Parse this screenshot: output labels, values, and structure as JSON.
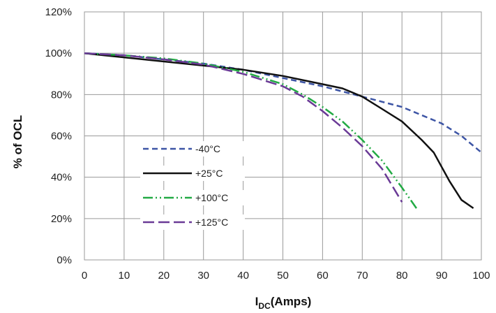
{
  "chart_data": {
    "type": "line",
    "xlabel_main": "I",
    "xlabel_sub": "DC",
    "xlabel_rest": "(Amps)",
    "ylabel": "% of OCL",
    "xlim": [
      0,
      100
    ],
    "ylim": [
      0,
      120
    ],
    "x_ticks": [
      "0",
      "10",
      "20",
      "30",
      "40",
      "50",
      "60",
      "70",
      "80",
      "90",
      "100"
    ],
    "y_ticks": [
      "0%",
      "20%",
      "40%",
      "60%",
      "80%",
      "100%",
      "120%"
    ],
    "grid": true,
    "legend_position": "center-left",
    "series": [
      {
        "name": "-40°C",
        "color": "#3d55a5",
        "style": "dashed",
        "points": [
          [
            0,
            100
          ],
          [
            10,
            99
          ],
          [
            20,
            97
          ],
          [
            30,
            95
          ],
          [
            40,
            92
          ],
          [
            50,
            88
          ],
          [
            60,
            84
          ],
          [
            70,
            79
          ],
          [
            80,
            74
          ],
          [
            90,
            66
          ],
          [
            95,
            60
          ],
          [
            100,
            52
          ]
        ]
      },
      {
        "name": "+25°C",
        "color": "#111111",
        "style": "solid",
        "points": [
          [
            0,
            100
          ],
          [
            10,
            98
          ],
          [
            20,
            96
          ],
          [
            30,
            94
          ],
          [
            40,
            92
          ],
          [
            50,
            89
          ],
          [
            60,
            85
          ],
          [
            65,
            83
          ],
          [
            70,
            79
          ],
          [
            75,
            73
          ],
          [
            80,
            67
          ],
          [
            85,
            58
          ],
          [
            88,
            52
          ],
          [
            92,
            38
          ],
          [
            95,
            29
          ],
          [
            98,
            25
          ]
        ]
      },
      {
        "name": "+100°C",
        "color": "#22aa44",
        "style": "dashdotdot",
        "points": [
          [
            0,
            100
          ],
          [
            10,
            99
          ],
          [
            20,
            97.5
          ],
          [
            30,
            95
          ],
          [
            40,
            91
          ],
          [
            50,
            85
          ],
          [
            55,
            80
          ],
          [
            60,
            74
          ],
          [
            65,
            67
          ],
          [
            70,
            58
          ],
          [
            75,
            48
          ],
          [
            80,
            35
          ],
          [
            84,
            24
          ]
        ]
      },
      {
        "name": "+125°C",
        "color": "#6a3a96",
        "style": "longdash",
        "points": [
          [
            0,
            100
          ],
          [
            10,
            99
          ],
          [
            20,
            97
          ],
          [
            30,
            94.5
          ],
          [
            40,
            90
          ],
          [
            50,
            84
          ],
          [
            55,
            79
          ],
          [
            60,
            72
          ],
          [
            65,
            64
          ],
          [
            70,
            55
          ],
          [
            75,
            44
          ],
          [
            80,
            28
          ]
        ]
      }
    ]
  }
}
